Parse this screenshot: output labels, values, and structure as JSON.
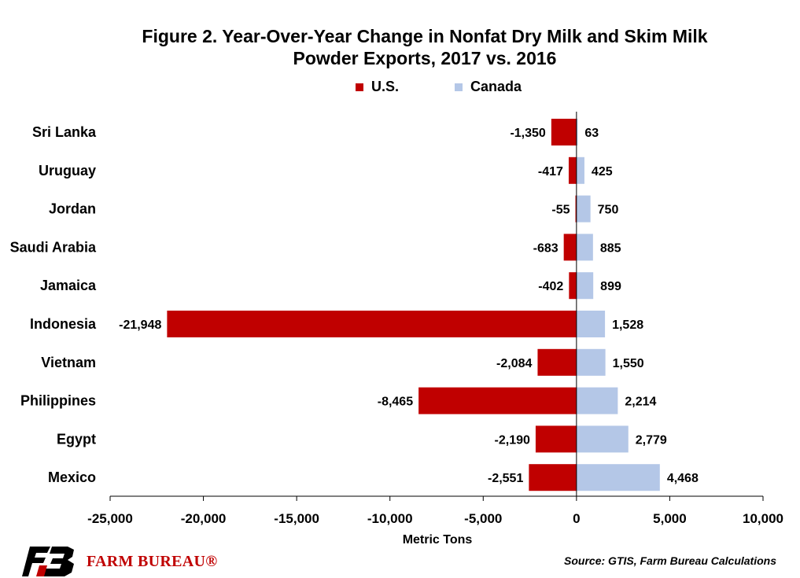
{
  "chart_data": {
    "type": "bar",
    "orientation": "horizontal",
    "title_lines": [
      "Figure 2. Year-Over-Year Change in Nonfat Dry Milk and Skim Milk",
      "Powder Exports, 2017 vs. 2016"
    ],
    "categories": [
      "Sri Lanka",
      "Uruguay",
      "Jordan",
      "Saudi Arabia",
      "Jamaica",
      "Indonesia",
      "Vietnam",
      "Philippines",
      "Egypt",
      "Mexico"
    ],
    "series": [
      {
        "name": "U.S.",
        "color": "#c00000",
        "values": [
          -1350,
          -417,
          -55,
          -683,
          -402,
          -21948,
          -2084,
          -8465,
          -2190,
          -2551
        ],
        "labels": [
          "-1,350",
          "-417",
          "-55",
          "-683",
          "-402",
          "-21,948",
          "-2,084",
          "-8,465",
          "-2,190",
          "-2,551"
        ]
      },
      {
        "name": "Canada",
        "color": "#b4c7e7",
        "values": [
          63,
          425,
          750,
          885,
          899,
          1528,
          1550,
          2214,
          2779,
          4468
        ],
        "labels": [
          "63",
          "425",
          "750",
          "885",
          "899",
          "1,528",
          "1,550",
          "2,214",
          "2,779",
          "4,468"
        ]
      }
    ],
    "xlabel": "Metric Tons",
    "xlim": [
      -25000,
      10000
    ],
    "xticks": [
      -25000,
      -20000,
      -15000,
      -10000,
      -5000,
      0,
      5000,
      10000
    ],
    "xtick_labels": [
      "-25,000",
      "-20,000",
      "-15,000",
      "-10,000",
      "-5,000",
      "0",
      "5,000",
      "10,000"
    ],
    "legend_position": "top-center",
    "grid": false
  },
  "footer": {
    "logo_text": "FARM BUREAU®",
    "source": "Source: GTIS, Farm Bureau Calculations"
  }
}
